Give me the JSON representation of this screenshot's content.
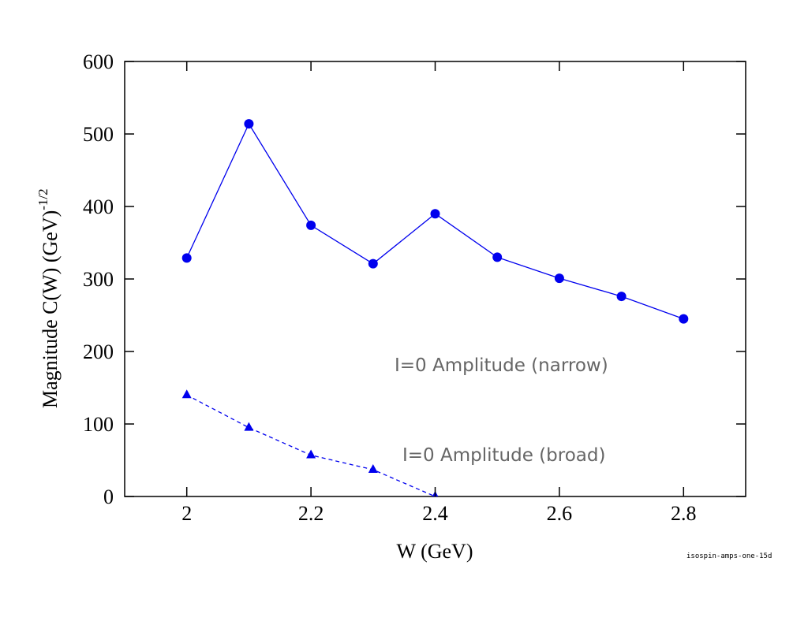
{
  "chart_data": {
    "type": "line",
    "xlabel": "W (GeV)",
    "ylabel": "Magnitude  C(W) (GeV)",
    "ylabel_superscript": "-1/2",
    "footnote": "isospin-amps-one-15d",
    "xlim": [
      1.9,
      2.9
    ],
    "xticks": [
      2,
      2.2,
      2.4,
      2.6,
      2.8
    ],
    "ylim": [
      0,
      600
    ],
    "yticks": [
      0,
      100,
      200,
      300,
      400,
      500,
      600
    ],
    "series": [
      {
        "name": "I=0 Amplitude (narrow)",
        "color": "#0000ee",
        "marker": "circle",
        "dash": false,
        "x": [
          2.0,
          2.1,
          2.2,
          2.3,
          2.4,
          2.5,
          2.6,
          2.7,
          2.8
        ],
        "values": [
          329,
          514,
          374,
          321,
          390,
          330,
          301,
          276,
          245
        ]
      },
      {
        "name": "I=0 Amplitude (broad)",
        "color": "#0000ee",
        "marker": "triangle",
        "dash": true,
        "x": [
          2.0,
          2.1,
          2.2,
          2.3,
          2.4
        ],
        "values": [
          140,
          95,
          57,
          37,
          0
        ]
      }
    ]
  }
}
